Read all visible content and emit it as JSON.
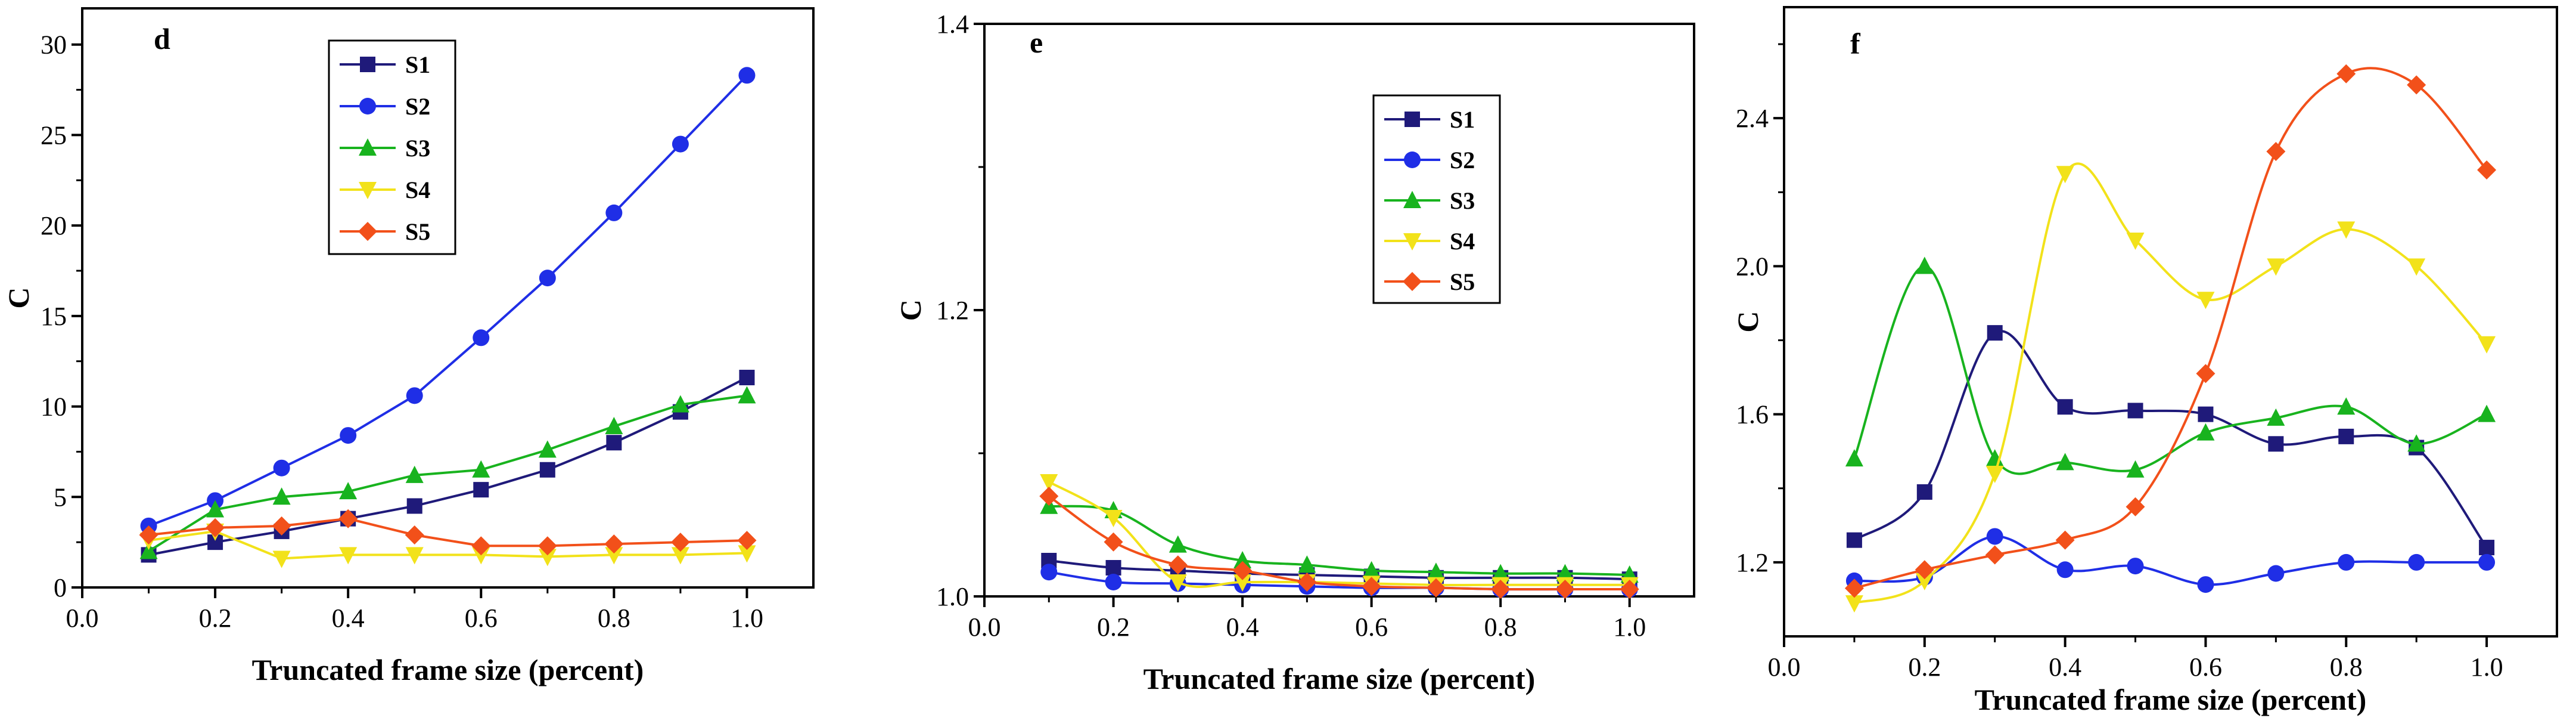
{
  "chart_data": [
    {
      "type": "line",
      "panel": "d",
      "xlabel": "Truncated frame size (percent)",
      "ylabel": "C",
      "xlim": [
        0.0,
        1.1
      ],
      "ylim": [
        0,
        32
      ],
      "xticks": [
        0.0,
        0.2,
        0.4,
        0.6,
        0.8,
        1.0
      ],
      "xtick_labels": [
        "0.0",
        "0.2",
        "0.4",
        "0.6",
        "0.8",
        "1.0"
      ],
      "yticks": [
        0,
        5,
        10,
        15,
        20,
        25,
        30
      ],
      "ytick_labels": [
        "0",
        "5",
        "10",
        "15",
        "20",
        "25",
        "30"
      ],
      "smooth": false,
      "legend_position": "top-center",
      "x": [
        0.1,
        0.2,
        0.3,
        0.4,
        0.5,
        0.6,
        0.7,
        0.8,
        0.9,
        1.0
      ],
      "series": [
        {
          "name": "S1",
          "color": "#1f1a7a",
          "marker": "square",
          "values": [
            1.8,
            2.5,
            3.1,
            3.8,
            4.5,
            5.4,
            6.5,
            8.0,
            9.7,
            11.6
          ]
        },
        {
          "name": "S2",
          "color": "#1f2ee6",
          "marker": "circle",
          "values": [
            3.4,
            4.8,
            6.6,
            8.4,
            10.6,
            13.8,
            17.1,
            20.7,
            24.5,
            28.3
          ]
        },
        {
          "name": "S3",
          "color": "#18b31e",
          "marker": "triangle",
          "values": [
            2.0,
            4.3,
            5.0,
            5.3,
            6.2,
            6.5,
            7.6,
            8.9,
            10.1,
            10.6
          ]
        },
        {
          "name": "S4",
          "color": "#f2e21a",
          "marker": "triangle-down",
          "values": [
            2.6,
            3.1,
            1.6,
            1.8,
            1.8,
            1.8,
            1.7,
            1.8,
            1.8,
            1.9
          ]
        },
        {
          "name": "S5",
          "color": "#f2501a",
          "marker": "diamond",
          "values": [
            2.9,
            3.3,
            3.4,
            3.8,
            2.9,
            2.3,
            2.3,
            2.4,
            2.5,
            2.6
          ]
        }
      ]
    },
    {
      "type": "line",
      "panel": "e",
      "xlabel": "Truncated frame size (percent)",
      "ylabel": "C",
      "xlim": [
        0.0,
        1.1
      ],
      "ylim": [
        1.0,
        1.4
      ],
      "xticks": [
        0.0,
        0.2,
        0.4,
        0.6,
        0.8,
        1.0
      ],
      "xtick_labels": [
        "0.0",
        "0.2",
        "0.4",
        "0.6",
        "0.8",
        "1.0"
      ],
      "yticks": [
        1.0,
        1.2,
        1.4
      ],
      "ytick_labels": [
        "1.0",
        "1.2",
        "1.4"
      ],
      "smooth": true,
      "legend_position": "top-right",
      "x": [
        0.1,
        0.2,
        0.3,
        0.4,
        0.5,
        0.6,
        0.7,
        0.8,
        0.9,
        1.0
      ],
      "series": [
        {
          "name": "S1",
          "color": "#1f1a7a",
          "marker": "square",
          "values": [
            1.025,
            1.02,
            1.018,
            1.016,
            1.015,
            1.014,
            1.013,
            1.013,
            1.013,
            1.012
          ]
        },
        {
          "name": "S2",
          "color": "#1f2ee6",
          "marker": "circle",
          "values": [
            1.017,
            1.01,
            1.009,
            1.008,
            1.007,
            1.006,
            1.006,
            1.005,
            1.005,
            1.005
          ]
        },
        {
          "name": "S3",
          "color": "#18b31e",
          "marker": "triangle",
          "values": [
            1.063,
            1.06,
            1.036,
            1.025,
            1.022,
            1.018,
            1.017,
            1.016,
            1.016,
            1.015
          ]
        },
        {
          "name": "S4",
          "color": "#f2e21a",
          "marker": "triangle-down",
          "values": [
            1.08,
            1.055,
            1.01,
            1.01,
            1.01,
            1.009,
            1.008,
            1.008,
            1.008,
            1.008
          ]
        },
        {
          "name": "S5",
          "color": "#f2501a",
          "marker": "diamond",
          "values": [
            1.07,
            1.038,
            1.022,
            1.018,
            1.01,
            1.007,
            1.006,
            1.005,
            1.005,
            1.005
          ]
        }
      ]
    },
    {
      "type": "line",
      "panel": "f",
      "xlabel": "Truncated frame size (percent)",
      "ylabel": "C",
      "xlim": [
        0.0,
        1.1
      ],
      "ylim": [
        1.0,
        2.7
      ],
      "xticks": [
        0.0,
        0.2,
        0.4,
        0.6,
        0.8,
        1.0
      ],
      "xtick_labels": [
        "0.0",
        "0.2",
        "0.4",
        "0.6",
        "0.8",
        "1.0"
      ],
      "yticks": [
        1.2,
        1.6,
        2.0,
        2.4
      ],
      "ytick_labels": [
        "1.2",
        "1.6",
        "2.0",
        "2.4"
      ],
      "smooth": true,
      "legend_position": "none",
      "x": [
        0.1,
        0.2,
        0.3,
        0.4,
        0.5,
        0.6,
        0.7,
        0.8,
        0.9,
        1.0
      ],
      "series": [
        {
          "name": "S1",
          "color": "#1f1a7a",
          "marker": "square",
          "values": [
            1.26,
            1.39,
            1.82,
            1.62,
            1.61,
            1.6,
            1.52,
            1.54,
            1.51,
            1.24
          ]
        },
        {
          "name": "S2",
          "color": "#1f2ee6",
          "marker": "circle",
          "values": [
            1.15,
            1.16,
            1.27,
            1.18,
            1.19,
            1.14,
            1.17,
            1.2,
            1.2,
            1.2
          ]
        },
        {
          "name": "S3",
          "color": "#18b31e",
          "marker": "triangle",
          "values": [
            1.48,
            2.0,
            1.48,
            1.47,
            1.45,
            1.55,
            1.59,
            1.62,
            1.52,
            1.6
          ]
        },
        {
          "name": "S4",
          "color": "#f2e21a",
          "marker": "triangle-down",
          "values": [
            1.09,
            1.15,
            1.44,
            2.25,
            2.07,
            1.91,
            2.0,
            2.1,
            2.0,
            1.79
          ]
        },
        {
          "name": "S5",
          "color": "#f2501a",
          "marker": "diamond",
          "values": [
            1.13,
            1.18,
            1.22,
            1.26,
            1.35,
            1.71,
            2.31,
            2.52,
            2.49,
            2.26
          ]
        }
      ]
    }
  ]
}
